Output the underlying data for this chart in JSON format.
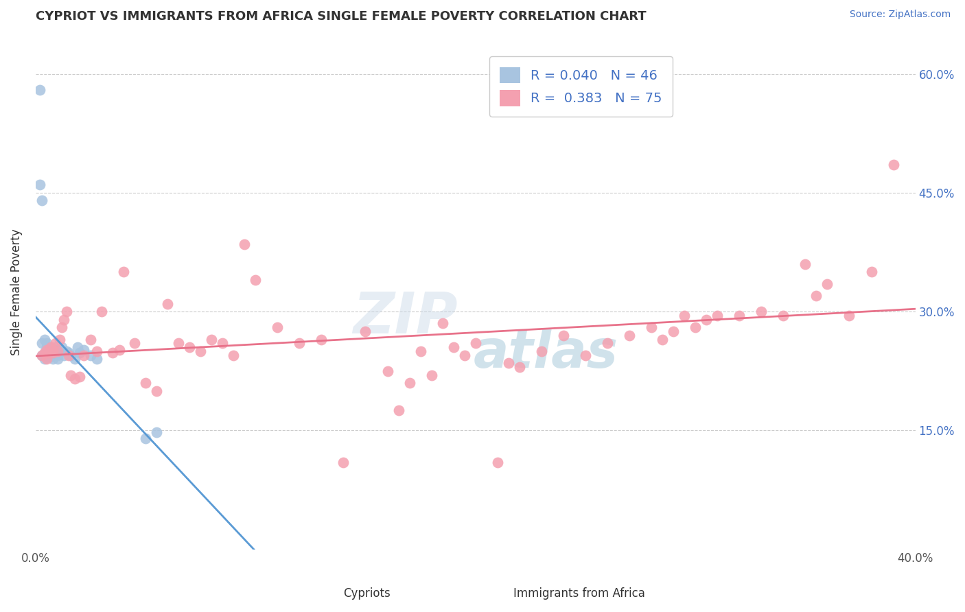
{
  "title": "CYPRIOT VS IMMIGRANTS FROM AFRICA SINGLE FEMALE POVERTY CORRELATION CHART",
  "source": "Source: ZipAtlas.com",
  "ylabel": "Single Female Poverty",
  "xaxis_label_cypriot": "Cypriots",
  "xaxis_label_africa": "Immigrants from Africa",
  "xlim": [
    0.0,
    0.4
  ],
  "ylim": [
    0.0,
    0.65
  ],
  "ytick_positions": [
    0.15,
    0.3,
    0.45,
    0.6
  ],
  "ytick_labels": [
    "15.0%",
    "30.0%",
    "45.0%",
    "60.0%"
  ],
  "R_cypriot": 0.04,
  "N_cypriot": 46,
  "R_africa": 0.383,
  "N_africa": 75,
  "cypriot_color": "#a8c4e0",
  "africa_color": "#f4a0b0",
  "trendline_cypriot_color": "#5b9bd5",
  "trendline_africa_color": "#e8728a",
  "trendline_dashed_color": "#a0c4de",
  "cypriot_x": [
    0.002,
    0.002,
    0.003,
    0.003,
    0.003,
    0.004,
    0.004,
    0.004,
    0.004,
    0.005,
    0.005,
    0.005,
    0.005,
    0.005,
    0.005,
    0.006,
    0.006,
    0.006,
    0.007,
    0.007,
    0.007,
    0.007,
    0.008,
    0.008,
    0.008,
    0.008,
    0.009,
    0.009,
    0.01,
    0.01,
    0.01,
    0.011,
    0.011,
    0.012,
    0.013,
    0.014,
    0.015,
    0.016,
    0.018,
    0.019,
    0.02,
    0.022,
    0.025,
    0.028,
    0.05,
    0.055
  ],
  "cypriot_y": [
    0.58,
    0.46,
    0.44,
    0.26,
    0.245,
    0.245,
    0.24,
    0.248,
    0.265,
    0.25,
    0.252,
    0.248,
    0.243,
    0.255,
    0.26,
    0.25,
    0.245,
    0.255,
    0.252,
    0.248,
    0.243,
    0.255,
    0.248,
    0.252,
    0.245,
    0.24,
    0.255,
    0.248,
    0.252,
    0.245,
    0.24,
    0.248,
    0.252,
    0.255,
    0.245,
    0.25,
    0.248,
    0.245,
    0.24,
    0.255,
    0.248,
    0.252,
    0.245,
    0.24,
    0.14,
    0.148
  ],
  "africa_x": [
    0.003,
    0.004,
    0.005,
    0.005,
    0.006,
    0.007,
    0.008,
    0.008,
    0.009,
    0.01,
    0.011,
    0.012,
    0.013,
    0.014,
    0.015,
    0.016,
    0.018,
    0.02,
    0.022,
    0.025,
    0.028,
    0.03,
    0.035,
    0.038,
    0.04,
    0.045,
    0.05,
    0.055,
    0.06,
    0.065,
    0.07,
    0.075,
    0.08,
    0.085,
    0.09,
    0.095,
    0.1,
    0.11,
    0.12,
    0.13,
    0.14,
    0.15,
    0.16,
    0.165,
    0.17,
    0.175,
    0.18,
    0.185,
    0.19,
    0.195,
    0.2,
    0.21,
    0.215,
    0.22,
    0.23,
    0.24,
    0.25,
    0.26,
    0.27,
    0.28,
    0.285,
    0.29,
    0.295,
    0.3,
    0.305,
    0.31,
    0.32,
    0.33,
    0.34,
    0.35,
    0.355,
    0.36,
    0.37,
    0.38,
    0.39
  ],
  "africa_y": [
    0.245,
    0.248,
    0.24,
    0.252,
    0.248,
    0.255,
    0.248,
    0.252,
    0.26,
    0.25,
    0.265,
    0.28,
    0.29,
    0.3,
    0.245,
    0.22,
    0.215,
    0.218,
    0.245,
    0.265,
    0.25,
    0.3,
    0.248,
    0.252,
    0.35,
    0.26,
    0.21,
    0.2,
    0.31,
    0.26,
    0.255,
    0.25,
    0.265,
    0.26,
    0.245,
    0.385,
    0.34,
    0.28,
    0.26,
    0.265,
    0.11,
    0.275,
    0.225,
    0.175,
    0.21,
    0.25,
    0.22,
    0.285,
    0.255,
    0.245,
    0.26,
    0.11,
    0.235,
    0.23,
    0.25,
    0.27,
    0.245,
    0.26,
    0.27,
    0.28,
    0.265,
    0.275,
    0.295,
    0.28,
    0.29,
    0.295,
    0.295,
    0.3,
    0.295,
    0.36,
    0.32,
    0.335,
    0.295,
    0.35,
    0.485
  ]
}
